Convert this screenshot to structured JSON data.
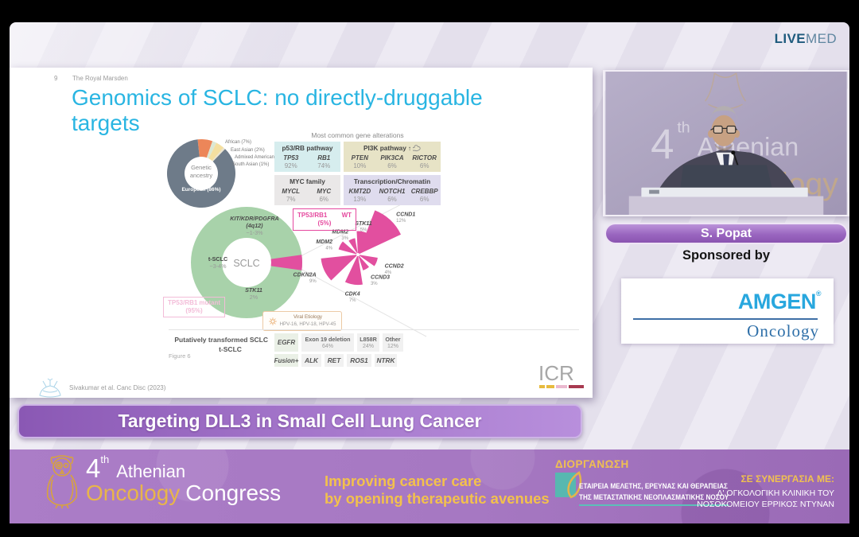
{
  "livemed": {
    "live": "LIVE",
    "med": "MED"
  },
  "slide": {
    "number": "9",
    "org": "The Royal Marsden",
    "title_lines": [
      "Genomics of SCLC: no directly-druggable",
      "targets"
    ],
    "citation": "Sivakumar et al. Canc Disc (2023)",
    "figure_label": "Figure 6",
    "icr_logo": "ICR",
    "viral_etiology": {
      "line1": "Viral Etiology",
      "line2": "HPV-16, HPV-18, HPV-45"
    },
    "tp53_wt_box": {
      "gene": "TP53/RB1",
      "status": "WT",
      "pct": "(5%)"
    },
    "tp53_mut_box": {
      "gene": "TP53/RB1",
      "status": "mutant",
      "pct": "(95%)"
    }
  },
  "chart_data": [
    {
      "id": "genetic-ancestry-donut",
      "type": "pie",
      "center_lines": [
        "Genetic",
        "ancestry"
      ],
      "slices": [
        {
          "label": "African (7%)",
          "value": 7,
          "color": "#ec8659"
        },
        {
          "label": "East Asian (2%)",
          "value": 2,
          "color": "#dde8d4"
        },
        {
          "label": "Admixed American (4%)",
          "value": 4,
          "color": "#f4dfa0"
        },
        {
          "label": "South Asian (1%)",
          "value": 1,
          "color": "#eae3d0"
        },
        {
          "label": "European (86%)",
          "value": 86,
          "color": "#6e7b89"
        }
      ]
    },
    {
      "id": "sclc-transformation-donut",
      "type": "pie",
      "center_label": "SCLC",
      "ring_color": "#a8d2aa",
      "highlight_color": "#e24f9f",
      "highlight_slice": {
        "label": "TP53/RB1 WT",
        "value": 5
      },
      "annotations": [
        {
          "lines": [
            "KIT/KDR/PDGFRA",
            "(4q12)",
            "~1-3%"
          ]
        },
        {
          "lines": [
            "t-SCLC",
            "~3-4%"
          ]
        },
        {
          "lines": [
            "STK11",
            "2%"
          ]
        }
      ]
    },
    {
      "id": "tp53-rb1-wt-alteration-rose",
      "type": "rose",
      "color": "#e24f9f",
      "wedges": [
        {
          "label": "CCND1",
          "pct": "12%",
          "value": 12,
          "angle": 47,
          "halfwidth": 22
        },
        {
          "label": "STK11",
          "pct": "5%",
          "value": 5,
          "angle": 80,
          "halfwidth": 13
        },
        {
          "label": "MDM2",
          "pct": "3%",
          "value": 3,
          "angle": 112,
          "halfwidth": 12
        },
        {
          "label": "MDM2",
          "pct": "4%",
          "value": 4,
          "angle": 152,
          "halfwidth": 13
        },
        {
          "label": "CDKN2A",
          "pct": "9%",
          "value": 9,
          "angle": 205,
          "halfwidth": 19
        },
        {
          "label": "CDK4",
          "pct": "7%",
          "value": 7,
          "angle": 262,
          "halfwidth": 17
        },
        {
          "label": "CCND3",
          "pct": "3%",
          "value": 3,
          "angle": 300,
          "halfwidth": 12
        },
        {
          "label": "CCND2",
          "pct": "4%",
          "value": 4,
          "angle": 338,
          "halfwidth": 13
        }
      ]
    },
    {
      "id": "gene-alterations-table",
      "type": "table",
      "title": "Most common gene alterations",
      "groups": [
        {
          "name": "p53/RB pathway",
          "color": "#d6edee",
          "genes": [
            {
              "gene": "TP53",
              "pct": "92%"
            },
            {
              "gene": "RB1",
              "pct": "74%"
            }
          ]
        },
        {
          "name": "PI3K pathway",
          "arrow": "↑",
          "icon": "brain-icon",
          "color": "#e7e3c6",
          "genes": [
            {
              "gene": "PTEN",
              "pct": "10%"
            },
            {
              "gene": "PIK3CA",
              "pct": "6%"
            },
            {
              "gene": "RICTOR",
              "pct": "6%"
            }
          ]
        },
        {
          "name": "MYC family",
          "color": "#eae8e8",
          "genes": [
            {
              "gene": "MYCL",
              "pct": "7%"
            },
            {
              "gene": "MYC",
              "pct": "6%"
            }
          ]
        },
        {
          "name": "Transcription/Chromatin",
          "color": "#dfdcee",
          "genes": [
            {
              "gene": "KMT2D",
              "pct": "13%"
            },
            {
              "gene": "NOTCH1",
              "pct": "6%"
            },
            {
              "gene": "CREBBP",
              "pct": "6%"
            }
          ]
        }
      ]
    },
    {
      "id": "t-sclc-alterations-table",
      "type": "table",
      "caption_line1": "Putatively transformed SCLC",
      "caption_line2": "t-SCLC",
      "rows": [
        {
          "head": "EGFR",
          "cells": [
            {
              "label": "Exon 19 deletion",
              "pct": "64%"
            },
            {
              "label": "L858R",
              "pct": "24%"
            },
            {
              "label": "Other",
              "pct": "12%"
            }
          ]
        },
        {
          "head": "Fusion+",
          "cells": [
            {
              "label": "ALK"
            },
            {
              "label": "RET"
            },
            {
              "label": "ROS1"
            },
            {
              "label": "NTRK"
            }
          ]
        }
      ]
    }
  ],
  "video": {
    "backdrop": {
      "num": "4",
      "sup": "th",
      "word1": "Athenian",
      "word2": "Oncology"
    }
  },
  "speaker": {
    "name": "S. Popat"
  },
  "sponsor": {
    "label": "Sponsored by",
    "brand": "AMGEN",
    "registered": "®",
    "division": "Oncology"
  },
  "banner": {
    "title": "Targeting DLL3 in Small Cell Lung Cancer"
  },
  "footer": {
    "congress": {
      "num": "4",
      "sup": "th",
      "word1": "Athenian",
      "word2": "Oncology",
      "word3": "Congress"
    },
    "tagline_lines": [
      "Improving cancer care",
      "by opening therapeutic avenues"
    ],
    "organizer_label": "ΔΙΟΡΓΑΝΩΣΗ",
    "organizer_line1": "ΕΤΑΙΡΕΙΑ ΜΕΛΕΤΗΣ, ΕΡΕΥΝΑΣ ΚΑΙ ΘΕΡΑΠΕΙΑΣ",
    "organizer_line2": "ΤΗΣ  ΜΕΤΑΣΤΑΤΙΚΗΣ ΝΕΟΠΛΑΣΜΑΤΙΚΗΣ ΝΟΣΟΥ",
    "partner_label": "ΣΕ ΣΥΝΕΡΓΑΣΙΑ ΜΕ:",
    "partner_line1": "Δ' ΟΓΚΟΛΟΓΙΚΗ ΚΛΙΝΙΚΗ ΤΟΥ",
    "partner_line2": "ΝΟΣΟΚΟΜΕΙΟΥ ΕΡΡΙΚΟΣ ΝΤΥΝΑΝ"
  }
}
